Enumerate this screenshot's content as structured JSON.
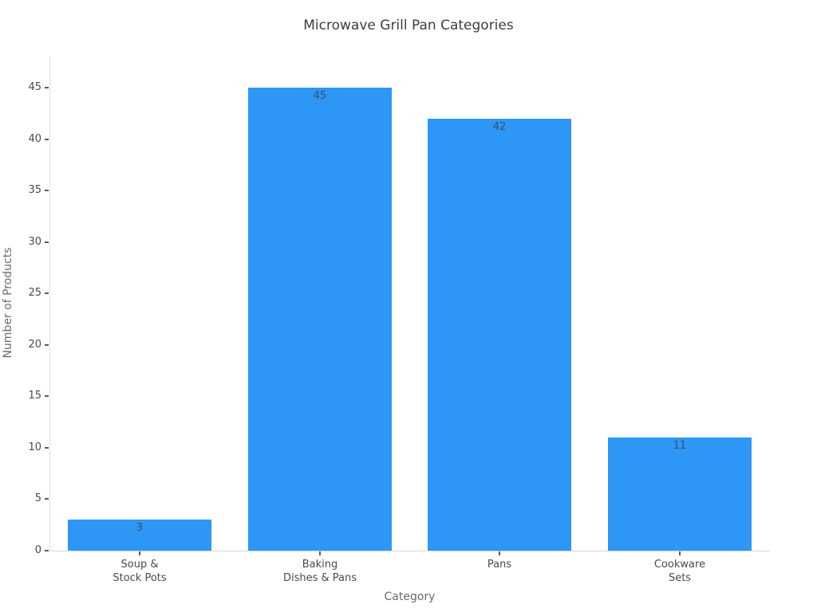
{
  "chart_data": {
    "type": "bar",
    "title": "Microwave Grill Pan Categories",
    "xlabel": "Category",
    "ylabel": "Number of Products",
    "categories": [
      "Soup &\nStock Pots",
      "Baking\nDishes & Pans",
      "Pans",
      "Cookware\nSets"
    ],
    "values": [
      3,
      45,
      42,
      11
    ],
    "value_label_position": "inside-top",
    "yticks": [
      0,
      5,
      10,
      15,
      20,
      25,
      30,
      35,
      40,
      45
    ],
    "ylim": [
      0,
      48.1
    ],
    "grid": false,
    "legend": "none",
    "colors": {
      "bar": "#2E96F5",
      "title_text": "#3d3d3d",
      "tick_text": "#4a4a4a",
      "axis_title_text": "#6b6b6b",
      "value_label_text": "#3e5166",
      "axis_line": "#dedede",
      "background": "#ffffff"
    }
  }
}
